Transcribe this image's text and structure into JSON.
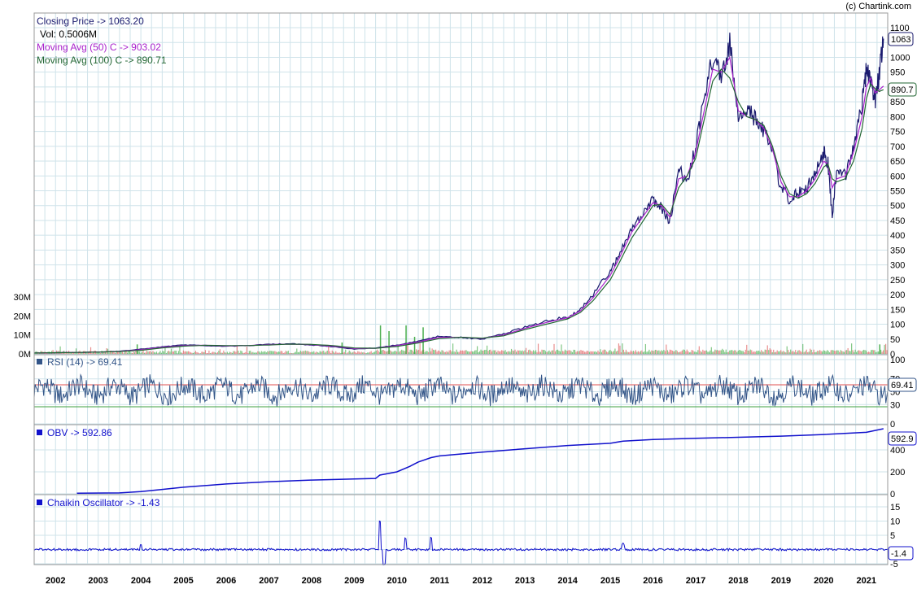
{
  "copyright": "(c) Chartink.com",
  "chart_data": [
    {
      "type": "line",
      "panel": "price",
      "title": "Closing Price -> 1063.20",
      "volume_label": "Vol: 0.5006M",
      "legend": [
        {
          "text": "Closing Price -> 1063.20",
          "color": "#1a1a6e"
        },
        {
          "text": "Moving Avg (50) C -> 903.02",
          "color": "#aa22cc"
        },
        {
          "text": "Moving Avg (100) C -> 890.71",
          "color": "#226633"
        }
      ],
      "x": [
        "2001.5",
        "2002",
        "2002.5",
        "2003",
        "2003.5",
        "2004",
        "2004.5",
        "2005",
        "2005.5",
        "2006",
        "2006.5",
        "2007",
        "2007.5",
        "2008",
        "2008.5",
        "2009",
        "2009.5",
        "2010",
        "2010.5",
        "2011",
        "2011.5",
        "2012",
        "2012.5",
        "2013",
        "2013.5",
        "2014",
        "2014.3",
        "2014.6",
        "2015",
        "2015.2",
        "2015.5",
        "2015.8",
        "2016",
        "2016.2",
        "2016.4",
        "2016.6",
        "2016.8",
        "2017",
        "2017.2",
        "2017.4",
        "2017.6",
        "2017.8",
        "2018",
        "2018.2",
        "2018.4",
        "2018.6",
        "2018.8",
        "2019",
        "2019.2",
        "2019.4",
        "2019.6",
        "2019.8",
        "2020",
        "2020.1",
        "2020.2",
        "2020.3",
        "2020.5",
        "2020.7",
        "2020.9",
        "2021",
        "2021.1",
        "2021.2",
        "2021.3",
        "2021.4"
      ],
      "series": [
        {
          "name": "Closing Price",
          "color": "#1a1a6e",
          "values": [
            3,
            4,
            5,
            6,
            9,
            16,
            24,
            30,
            28,
            26,
            28,
            32,
            34,
            30,
            24,
            16,
            20,
            30,
            42,
            60,
            55,
            50,
            68,
            90,
            110,
            125,
            150,
            200,
            280,
            330,
            430,
            480,
            520,
            490,
            450,
            620,
            590,
            700,
            850,
            1000,
            930,
            1050,
            780,
            820,
            790,
            750,
            680,
            560,
            520,
            540,
            560,
            600,
            680,
            640,
            470,
            620,
            600,
            700,
            840,
            960,
            920,
            850,
            940,
            1063
          ]
        },
        {
          "name": "Moving Avg (50) C",
          "color": "#aa22cc",
          "values": [
            3,
            4,
            5,
            6,
            8,
            14,
            22,
            28,
            29,
            27,
            28,
            31,
            33,
            31,
            26,
            18,
            19,
            28,
            40,
            56,
            56,
            52,
            64,
            86,
            106,
            122,
            145,
            190,
            265,
            320,
            410,
            470,
            510,
            500,
            460,
            590,
            600,
            680,
            820,
            960,
            950,
            1000,
            820,
            800,
            790,
            760,
            690,
            580,
            530,
            530,
            550,
            590,
            650,
            640,
            560,
            590,
            600,
            680,
            800,
            900,
            930,
            880,
            890,
            903
          ]
        },
        {
          "name": "Moving Avg (100) C",
          "color": "#226633",
          "values": [
            3,
            4,
            5,
            6,
            8,
            12,
            20,
            26,
            29,
            28,
            28,
            30,
            33,
            32,
            28,
            20,
            19,
            25,
            37,
            52,
            56,
            53,
            61,
            82,
            100,
            118,
            140,
            180,
            250,
            305,
            390,
            455,
            500,
            505,
            470,
            560,
            600,
            660,
            790,
            920,
            960,
            930,
            850,
            800,
            790,
            770,
            700,
            600,
            540,
            525,
            540,
            575,
            630,
            640,
            590,
            580,
            590,
            650,
            760,
            860,
            910,
            895,
            885,
            890.71
          ]
        }
      ],
      "ylim": [
        0,
        1100
      ],
      "yticks": [
        "0",
        "50",
        "100",
        "150",
        "200",
        "250",
        "300",
        "350",
        "400",
        "450",
        "500",
        "550",
        "600",
        "650",
        "700",
        "750",
        "800",
        "850",
        "900",
        "950",
        "1000",
        "1050",
        "1100"
      ],
      "last_value_tags": [
        "1063",
        "890.7"
      ],
      "xticks": [
        "2002",
        "2003",
        "2004",
        "2005",
        "2006",
        "2007",
        "2008",
        "2009",
        "2010",
        "2011",
        "2012",
        "2013",
        "2014",
        "2015",
        "2016",
        "2017",
        "2018",
        "2019",
        "2020",
        "2021"
      ]
    },
    {
      "type": "bar",
      "panel": "volume",
      "yticks": [
        "0M",
        "10M",
        "20M",
        "30M"
      ],
      "ylim": [
        0,
        30
      ],
      "spikes": [
        {
          "x": "2009.6",
          "value": 15
        },
        {
          "x": "2009.8",
          "value": 12
        },
        {
          "x": "2010.2",
          "value": 15
        },
        {
          "x": "2010.6",
          "value": 14
        },
        {
          "x": "2010.4",
          "value": 9
        },
        {
          "x": "2008.7",
          "value": 6
        },
        {
          "x": "2003.9",
          "value": 5
        },
        {
          "x": "2021.3",
          "value": 5
        }
      ]
    },
    {
      "type": "line",
      "panel": "rsi",
      "title": "RSI (14) -> 69.41",
      "ylim": [
        0,
        100
      ],
      "yticks": [
        "0",
        "30",
        "50",
        "70",
        "100"
      ],
      "upper_band": 70,
      "lower_band": 30,
      "last_value_tag": "69.41",
      "color": "#335588"
    },
    {
      "type": "line",
      "panel": "obv",
      "title": "OBV -> 592.86",
      "ylim": [
        0,
        600
      ],
      "yticks": [
        "0",
        "200",
        "400"
      ],
      "last_value_tag": "592.9",
      "color": "#1111cc",
      "x": [
        "2002.5",
        "2003.5",
        "2004",
        "2004.5",
        "2005",
        "2006",
        "2007",
        "2008",
        "2009",
        "2009.5",
        "2009.6",
        "2010",
        "2010.3",
        "2010.5",
        "2010.8",
        "2011",
        "2012",
        "2013",
        "2014",
        "2015",
        "2015.3",
        "2016",
        "2017",
        "2018",
        "2019",
        "2020",
        "2021",
        "2021.4"
      ],
      "values": [
        5,
        8,
        20,
        40,
        60,
        90,
        110,
        125,
        135,
        140,
        170,
        200,
        250,
        290,
        330,
        345,
        380,
        410,
        440,
        460,
        480,
        495,
        505,
        515,
        525,
        540,
        560,
        592.86
      ]
    },
    {
      "type": "line",
      "panel": "chaikin",
      "title": "Chaikin Oscillator -> -1.43",
      "ylim": [
        -5,
        15
      ],
      "yticks": [
        "-5",
        "0",
        "5",
        "10",
        "15"
      ],
      "last_value_tag": "-1.4",
      "color": "#1111cc"
    }
  ]
}
